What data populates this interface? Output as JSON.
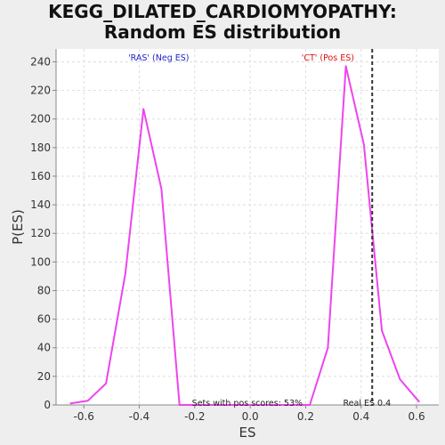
{
  "chart_data": {
    "type": "line",
    "title_lines": [
      "KEGG_DILATED_CARDIOMYOPATHY:",
      "Random ES distribution"
    ],
    "xlabel": "ES",
    "ylabel": "P(ES)",
    "xlim": [
      -0.7,
      0.68
    ],
    "ylim": [
      0,
      249
    ],
    "xticks": [
      -0.6,
      -0.4,
      -0.2,
      0.0,
      0.2,
      0.4,
      0.6
    ],
    "xtick_labels": [
      "-0.6",
      "-0.4",
      "-0.2",
      "0.0",
      "0.2",
      "0.4",
      "0.6"
    ],
    "yticks": [
      0,
      20,
      40,
      60,
      80,
      100,
      120,
      140,
      160,
      180,
      200,
      220,
      240
    ],
    "ytick_labels": [
      "0",
      "20",
      "40",
      "60",
      "80",
      "100",
      "120",
      "140",
      "160",
      "180",
      "200",
      "220",
      "240"
    ],
    "grid": true,
    "series": [
      {
        "color": "#ee44ee",
        "x": [
          -0.65,
          -0.585,
          -0.52,
          -0.45,
          -0.385,
          -0.32,
          -0.255,
          0.215,
          0.28,
          0.345,
          0.41,
          0.475,
          0.54,
          0.61
        ],
        "y": [
          1,
          3,
          15,
          92,
          207,
          151,
          0,
          0,
          40,
          237,
          182,
          52,
          18,
          2
        ]
      }
    ],
    "real_es": 0.44,
    "real_es_color": "#333333",
    "annotations": {
      "neg_label": "'RAS' (Neg ES)",
      "neg_color": "#2222cc",
      "pos_label": "'CT' (Pos ES)",
      "pos_color": "#dd1111",
      "sets_text": "Sets with pos scores: 53%",
      "real_es_text": "Real ES 0.4"
    }
  }
}
